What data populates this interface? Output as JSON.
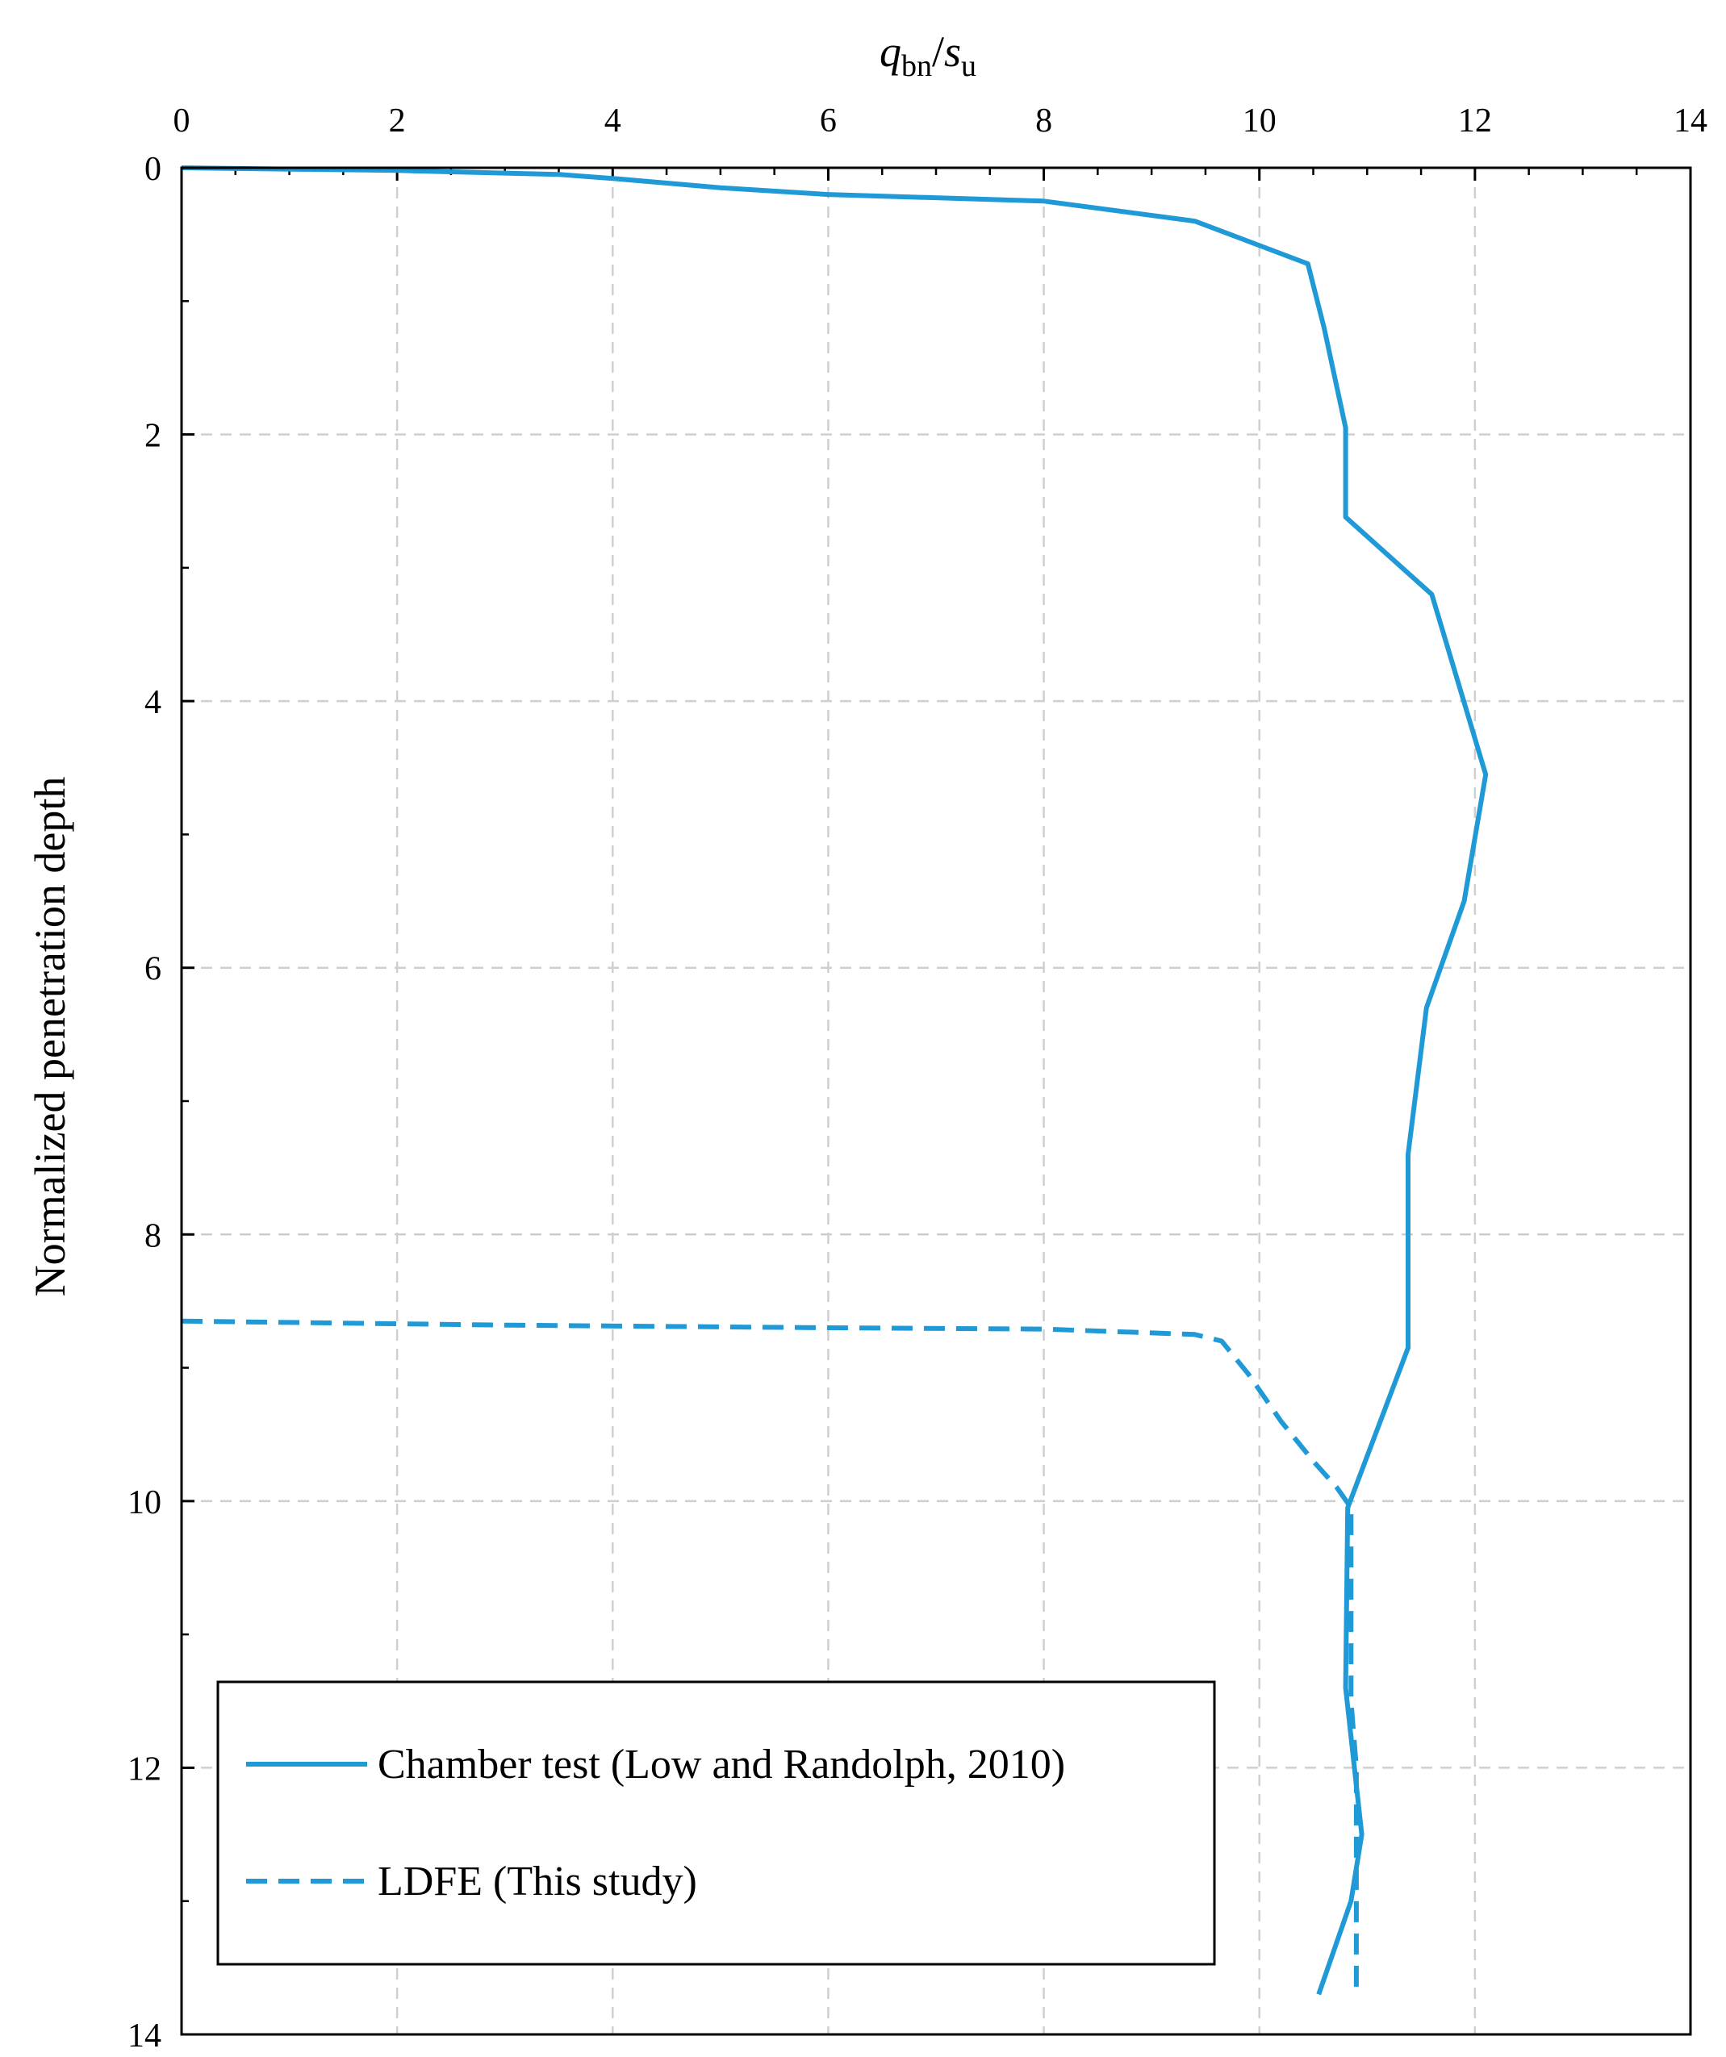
{
  "chart_data": {
    "type": "line",
    "title": "",
    "xlabel": {
      "main": "q",
      "sub1": "bn",
      "slash": "/",
      "main2": "s",
      "sub2": "u"
    },
    "ylabel": "Normalized  penetration  depth",
    "xlim": [
      0,
      14
    ],
    "ylim": [
      0,
      14
    ],
    "y_inverted": true,
    "x_axis_position": "top",
    "grid": true,
    "x_ticks": [
      "0",
      "2",
      "4",
      "6",
      "8",
      "10",
      "12",
      "14"
    ],
    "y_ticks": [
      "0",
      "2",
      "4",
      "6",
      "8",
      "10",
      "12",
      "14"
    ],
    "legend": {
      "position": "bottom-left",
      "entries": [
        "Chamber test (Low and Randolph, 2010)",
        "LDFE (This study)"
      ]
    },
    "series": [
      {
        "name": "Chamber test (Low and Randolph, 2010)",
        "style": "solid",
        "color": "#1f9ad6",
        "points": [
          [
            0,
            0
          ],
          [
            2,
            0.02
          ],
          [
            3.5,
            0.05
          ],
          [
            4,
            0.08
          ],
          [
            5,
            0.15
          ],
          [
            6,
            0.2
          ],
          [
            8,
            0.25
          ],
          [
            9.4,
            0.4
          ],
          [
            10.45,
            0.72
          ],
          [
            10.6,
            1.2
          ],
          [
            10.8,
            1.95
          ],
          [
            10.8,
            2.62
          ],
          [
            11.6,
            3.2
          ],
          [
            12.1,
            4.55
          ],
          [
            11.9,
            5.5
          ],
          [
            11.55,
            6.3
          ],
          [
            11.38,
            7.4
          ],
          [
            11.38,
            8.85
          ],
          [
            10.82,
            10.05
          ],
          [
            10.8,
            11.4
          ],
          [
            10.95,
            12.5
          ],
          [
            10.85,
            13.0
          ],
          [
            10.55,
            13.7
          ]
        ]
      },
      {
        "name": "LDFE (This study)",
        "style": "dashed",
        "color": "#1f9ad6",
        "points": [
          [
            0,
            8.65
          ],
          [
            3,
            8.68
          ],
          [
            6,
            8.7
          ],
          [
            8,
            8.71
          ],
          [
            9.4,
            8.75
          ],
          [
            9.65,
            8.8
          ],
          [
            9.9,
            9.05
          ],
          [
            10.2,
            9.4
          ],
          [
            10.5,
            9.7
          ],
          [
            10.72,
            9.9
          ],
          [
            10.85,
            10.05
          ],
          [
            10.85,
            10.5
          ],
          [
            10.85,
            11.0
          ],
          [
            10.85,
            11.5
          ],
          [
            10.9,
            12.0
          ],
          [
            10.9,
            12.5
          ],
          [
            10.9,
            13.0
          ],
          [
            10.9,
            13.7
          ]
        ]
      }
    ]
  }
}
